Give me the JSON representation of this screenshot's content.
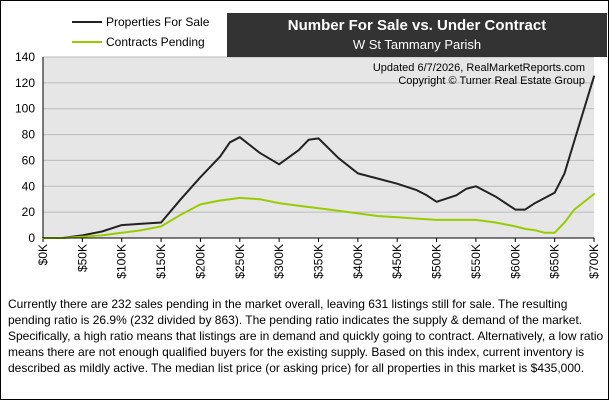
{
  "chart_data": {
    "type": "line",
    "title": "Number For Sale vs. Under Contract",
    "subtitle": "W St Tammany Parish",
    "updated_line": "Updated 6/7/2026, RealMarketReports.com",
    "copyright_line": "Copyright © Turner Real Estate Group",
    "ylim": [
      0,
      140
    ],
    "y_ticks": [
      0,
      20,
      40,
      60,
      80,
      100,
      120,
      140
    ],
    "xlim": [
      0,
      700000
    ],
    "x_tick_values": [
      0,
      50000,
      100000,
      150000,
      200000,
      250000,
      300000,
      350000,
      400000,
      450000,
      500000,
      550000,
      600000,
      650000,
      700000
    ],
    "x_tick_labels": [
      "$0K",
      "$50K",
      "$100K",
      "$150K",
      "$200K",
      "$250K",
      "$300K",
      "$350K",
      "$400K",
      "$450K",
      "$500K",
      "$550K",
      "$600K",
      "$650K",
      "$700K"
    ],
    "grid": true,
    "legend_position": "top-left",
    "series": [
      {
        "name": "Properties For Sale",
        "color": "#222222",
        "x": [
          0,
          25000,
          50000,
          75000,
          100000,
          125000,
          150000,
          175000,
          200000,
          225000,
          237500,
          250000,
          275000,
          300000,
          325000,
          337500,
          350000,
          375000,
          400000,
          425000,
          450000,
          475000,
          487500,
          500000,
          525000,
          537500,
          550000,
          575000,
          600000,
          612500,
          625000,
          650000,
          662500,
          675000,
          700000
        ],
        "values": [
          0,
          0,
          2,
          5,
          10,
          11,
          12,
          30,
          47,
          63,
          74,
          78,
          66,
          57,
          68,
          76,
          77,
          62,
          50,
          46,
          42,
          37,
          33,
          28,
          33,
          38,
          40,
          32,
          22,
          22,
          27,
          35,
          50,
          75,
          125
        ]
      },
      {
        "name": "Contracts Pending",
        "color": "#99cc00",
        "x": [
          0,
          25000,
          50000,
          75000,
          100000,
          125000,
          150000,
          175000,
          200000,
          225000,
          237500,
          250000,
          275000,
          300000,
          325000,
          350000,
          375000,
          400000,
          425000,
          450000,
          475000,
          500000,
          525000,
          550000,
          575000,
          600000,
          612500,
          625000,
          637500,
          650000,
          662500,
          675000,
          700000
        ],
        "values": [
          0,
          0,
          1,
          2,
          4,
          6,
          9,
          18,
          26,
          29,
          30,
          31,
          30,
          27,
          25,
          23,
          21,
          19,
          17,
          16,
          15,
          14,
          14,
          14,
          12,
          9,
          7,
          6,
          4,
          4,
          12,
          22,
          34
        ]
      }
    ]
  },
  "description": "Currently there are 232 sales pending in the market overall, leaving 631 listings still for sale.  The resulting pending ratio is 26.9% (232 divided by 863).  The pending ratio indicates the supply & demand of the market.  Specifically, a high ratio means that listings are in demand and quickly going to contract.  Alternatively, a low ratio means there are not enough qualified buyers for the existing supply.  Based on this index, current inventory is described as mildly active.  The median list price (or asking price) for all properties in this market is $435,000."
}
